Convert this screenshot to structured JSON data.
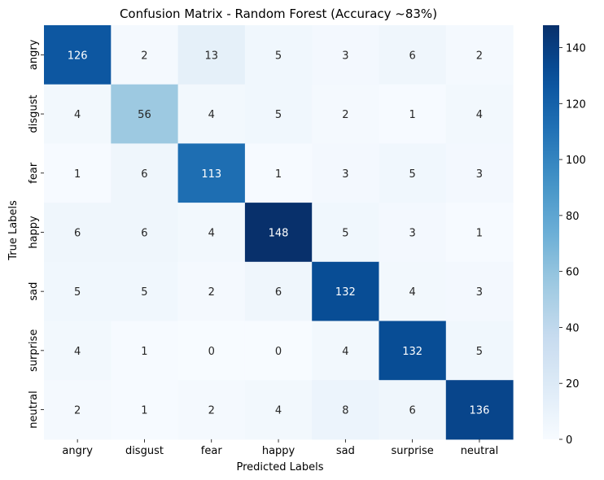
{
  "chart_data": {
    "type": "heatmap",
    "title": "Confusion Matrix - Random Forest (Accuracy ~83%)",
    "xlabel": "Predicted Labels",
    "ylabel": "True Labels",
    "x_categories": [
      "angry",
      "disgust",
      "fear",
      "happy",
      "sad",
      "surprise",
      "neutral"
    ],
    "y_categories": [
      "angry",
      "disgust",
      "fear",
      "happy",
      "sad",
      "surprise",
      "neutral"
    ],
    "values": [
      [
        126,
        2,
        13,
        5,
        3,
        6,
        2
      ],
      [
        4,
        56,
        4,
        5,
        2,
        1,
        4
      ],
      [
        1,
        6,
        113,
        1,
        3,
        5,
        3
      ],
      [
        6,
        6,
        4,
        148,
        5,
        3,
        1
      ],
      [
        5,
        5,
        2,
        6,
        132,
        4,
        3
      ],
      [
        4,
        1,
        0,
        0,
        4,
        132,
        5
      ],
      [
        2,
        1,
        2,
        4,
        8,
        6,
        136
      ]
    ],
    "colormap": "Blues",
    "colorbar": {
      "min": 0,
      "max": 148,
      "ticks": [
        0,
        20,
        40,
        60,
        80,
        100,
        120,
        140
      ]
    }
  }
}
